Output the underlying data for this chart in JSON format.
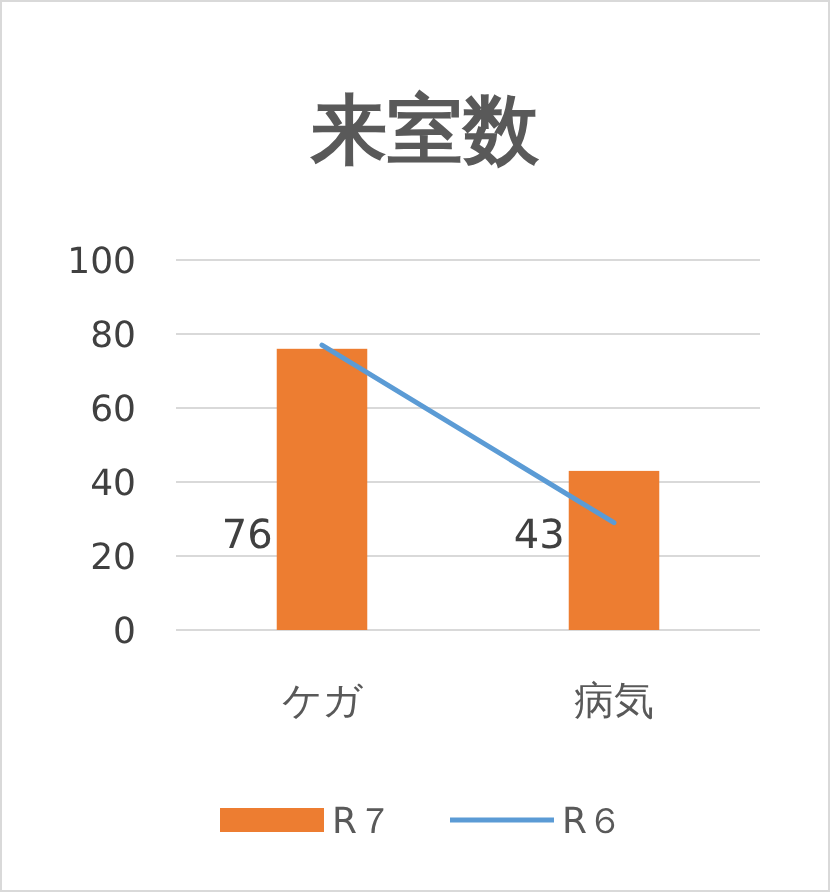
{
  "chart_data": {
    "type": "bar",
    "title": "来室数",
    "categories": [
      "ケガ",
      "病気"
    ],
    "series": [
      {
        "name": "R７",
        "color": "#ed7d31",
        "values": [
          76,
          43
        ],
        "value_labels": [
          "76",
          "43"
        ]
      },
      {
        "name": "R６",
        "type": "line",
        "color": "#5b9bd5",
        "values": [
          77,
          29
        ]
      }
    ],
    "ylim": [
      0,
      100
    ],
    "yticks": [
      0,
      20,
      40,
      60,
      80,
      100
    ],
    "grid": "y",
    "legend": "bottom",
    "marker": "none"
  }
}
